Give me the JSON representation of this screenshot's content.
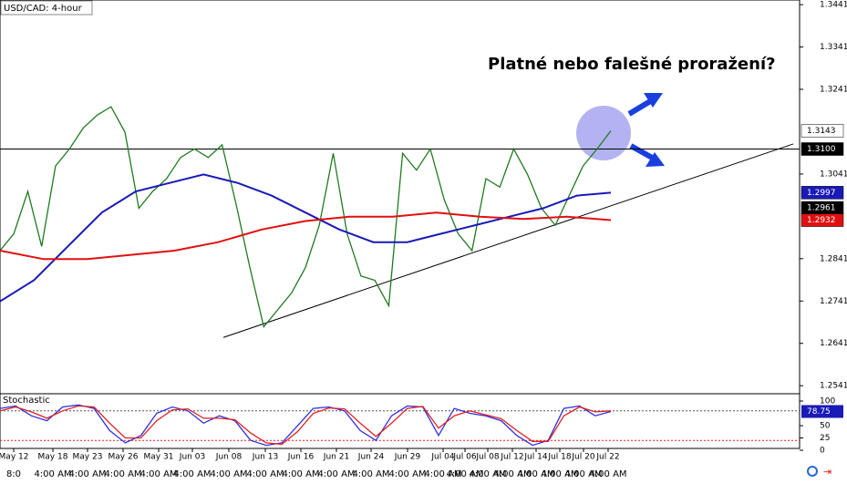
{
  "header": {
    "symbol": "USD/CAD: 4-hour"
  },
  "annotation": "Platné nebo falešné proražení?",
  "x_axis": {
    "dates": [
      "May 12",
      "May 18",
      "May 23",
      "May 26",
      "May 31",
      "Jun 03",
      "Jun 08",
      "Jun 13",
      "Jun 16",
      "Jun 21",
      "Jun 24",
      "Jun 29",
      "Jul 04",
      "Jul 06",
      "Jul 08",
      "Jul 12",
      "Jul 14",
      "Jul 18",
      "Jul 20",
      "Jul 22"
    ],
    "times": [
      "8:0",
      "4:00 AM",
      "4:00 AM",
      "4:00 AM",
      "4:00 AM",
      "4:00 AM",
      "4:00 AM",
      "4:00 AM",
      "4:00 AM",
      "4:00 AM",
      "4:00 AM",
      "4:00 AM",
      "4:00 AM",
      "4:00 AM",
      "4:00 AM",
      "4:00 AM",
      "4:00 AM",
      "4:00 AM",
      "4:00 AM",
      "4:00 AM"
    ]
  },
  "chart_data": [
    {
      "type": "line",
      "ylim": [
        1.2522,
        1.3452
      ],
      "yticks": [
        1.3441,
        1.3341,
        1.3241,
        1.3041,
        1.2841,
        1.2741,
        1.2641,
        1.2541
      ],
      "series": [
        {
          "name": "Price",
          "color": "#1f7a1f",
          "values": [
            1.286,
            1.29,
            1.3,
            1.287,
            1.306,
            1.31,
            1.315,
            1.318,
            1.32,
            1.314,
            1.296,
            1.3,
            1.303,
            1.308,
            1.31,
            1.308,
            1.311,
            1.297,
            1.282,
            1.268,
            1.272,
            1.276,
            1.282,
            1.292,
            1.309,
            1.29,
            1.28,
            1.279,
            1.273,
            1.309,
            1.305,
            1.31,
            1.298,
            1.29,
            1.286,
            1.303,
            1.301,
            1.31,
            1.304,
            1.296,
            1.292,
            1.299,
            1.306,
            1.31,
            1.3143
          ]
        },
        {
          "name": "MA 100",
          "color": "#1a1ab8",
          "values": [
            1.274,
            1.279,
            1.287,
            1.295,
            1.3,
            1.302,
            1.304,
            1.302,
            1.299,
            1.295,
            1.291,
            1.288,
            1.288,
            1.29,
            1.292,
            1.294,
            1.296,
            1.299,
            1.2997
          ]
        },
        {
          "name": "MA 200",
          "color": "#e01010",
          "values": [
            1.286,
            1.284,
            1.284,
            1.285,
            1.286,
            1.288,
            1.291,
            1.293,
            1.294,
            1.294,
            1.295,
            1.294,
            1.2935,
            1.294,
            1.2932
          ]
        }
      ],
      "level": 1.31,
      "trendline": [
        1.2655,
        1.3112
      ],
      "price_markers": [
        {
          "value": 1.3143,
          "label": "1.3143",
          "color": "#ffffff",
          "text_color": "#000000"
        },
        {
          "value": 1.31,
          "label": "1.3100",
          "color": "#000000",
          "text_color": "#ffffff"
        },
        {
          "value": 1.2997,
          "label": "1.2997",
          "color": "#1a1ab8",
          "text_color": "#ffffff"
        },
        {
          "value": 1.2961,
          "label": "1.2961",
          "color": "#000000",
          "text_color": "#ffffff"
        },
        {
          "value": 1.2932,
          "label": "1.2932",
          "color": "#e01010",
          "text_color": "#ffffff"
        }
      ]
    },
    {
      "type": "line",
      "title": "Stochastic",
      "ylim": [
        0,
        100
      ],
      "yticks": [
        100,
        50,
        25,
        0
      ],
      "levels": [
        80,
        20
      ],
      "series": [
        {
          "name": "%K",
          "color": "#3030e0",
          "values": [
            85,
            90,
            70,
            60,
            88,
            92,
            85,
            40,
            15,
            30,
            75,
            88,
            80,
            55,
            70,
            60,
            20,
            10,
            15,
            50,
            85,
            88,
            80,
            40,
            20,
            70,
            90,
            88,
            30,
            85,
            75,
            70,
            60,
            30,
            10,
            20,
            85,
            90,
            70,
            78.75
          ]
        },
        {
          "name": "%D",
          "color": "#e02020",
          "values": [
            80,
            88,
            78,
            65,
            80,
            90,
            88,
            55,
            25,
            25,
            60,
            82,
            84,
            65,
            65,
            62,
            35,
            15,
            12,
            38,
            75,
            86,
            84,
            55,
            28,
            55,
            85,
            89,
            45,
            70,
            80,
            72,
            64,
            40,
            18,
            18,
            70,
            88,
            78,
            80
          ]
        }
      ],
      "marker": 78.75
    }
  ]
}
